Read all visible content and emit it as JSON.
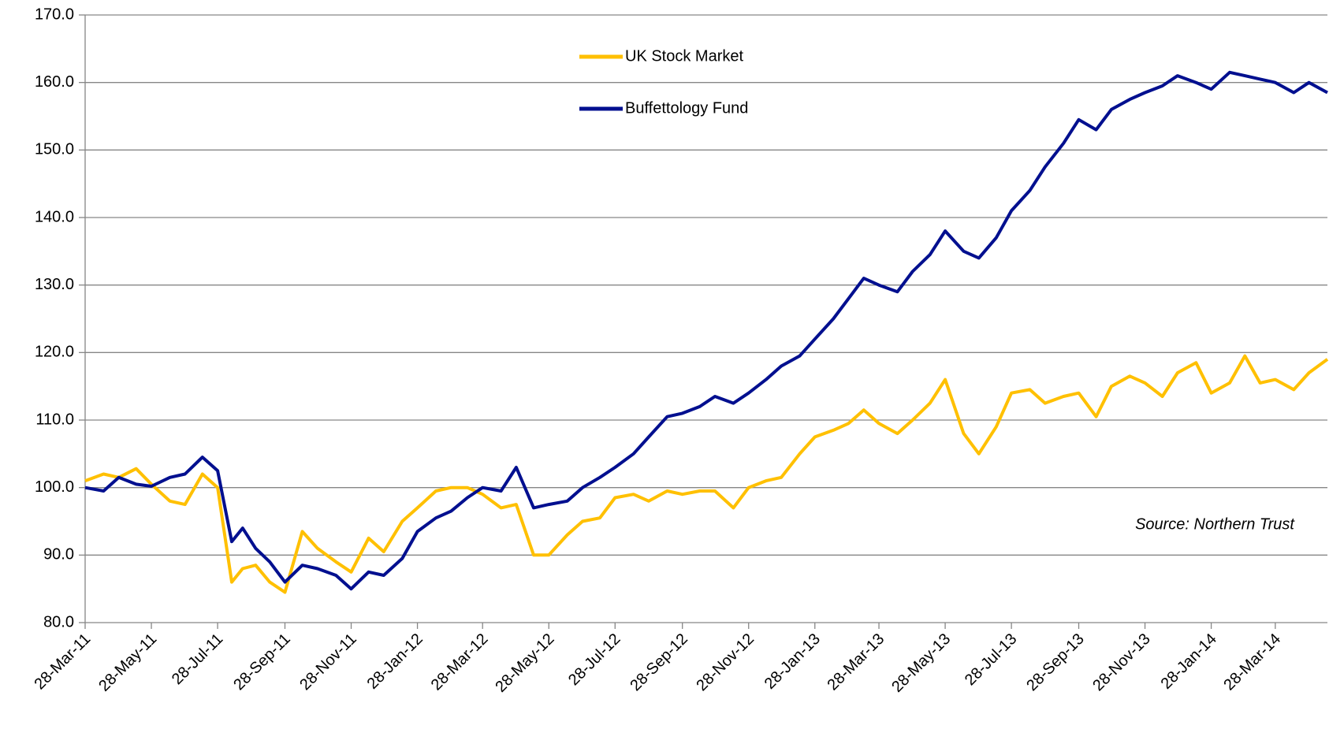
{
  "chart_data": {
    "type": "line",
    "x": [
      "2011-03-28",
      "2011-04-14",
      "2011-04-28",
      "2011-05-14",
      "2011-05-28",
      "2011-06-14",
      "2011-06-28",
      "2011-07-14",
      "2011-07-28",
      "2011-08-10",
      "2011-08-20",
      "2011-09-01",
      "2011-09-14",
      "2011-09-28",
      "2011-10-14",
      "2011-10-28",
      "2011-11-14",
      "2011-11-28",
      "2011-12-14",
      "2011-12-28",
      "2012-01-14",
      "2012-01-28",
      "2012-02-14",
      "2012-02-28",
      "2012-03-14",
      "2012-03-28",
      "2012-04-14",
      "2012-04-28",
      "2012-05-14",
      "2012-05-28",
      "2012-06-14",
      "2012-06-28",
      "2012-07-14",
      "2012-07-28",
      "2012-08-14",
      "2012-08-28",
      "2012-09-14",
      "2012-09-28",
      "2012-10-14",
      "2012-10-28",
      "2012-11-14",
      "2012-11-28",
      "2012-12-14",
      "2012-12-28",
      "2013-01-14",
      "2013-01-28",
      "2013-02-14",
      "2013-02-28",
      "2013-03-14",
      "2013-03-28",
      "2013-04-14",
      "2013-04-28",
      "2013-05-14",
      "2013-05-28",
      "2013-06-14",
      "2013-06-28",
      "2013-07-14",
      "2013-07-28",
      "2013-08-14",
      "2013-08-28",
      "2013-09-14",
      "2013-09-28",
      "2013-10-14",
      "2013-10-28",
      "2013-11-14",
      "2013-11-28",
      "2013-12-14",
      "2013-12-28",
      "2014-01-14",
      "2014-01-28",
      "2014-02-14",
      "2014-02-28",
      "2014-03-14",
      "2014-03-28",
      "2014-04-14",
      "2014-04-28",
      "2014-05-15"
    ],
    "series": [
      {
        "name": "UK Stock Market",
        "color": "#ffc000",
        "values": [
          101,
          102,
          101.5,
          102.8,
          100.5,
          98,
          97.5,
          102,
          100,
          86,
          88,
          88.5,
          86,
          84.5,
          93.5,
          91,
          89,
          87.5,
          92.5,
          90.5,
          95,
          97,
          99.5,
          100,
          100,
          99,
          97,
          97.5,
          90,
          90,
          93,
          95,
          95.5,
          98.5,
          99,
          98,
          99.5,
          99,
          99.5,
          99.5,
          97,
          100,
          101,
          101.5,
          105,
          107.5,
          108.5,
          109.5,
          111.5,
          109.5,
          108,
          110,
          112.5,
          116,
          108,
          105,
          109,
          114,
          114.5,
          112.5,
          113.5,
          114,
          110.5,
          115,
          116.5,
          115.5,
          113.5,
          117,
          118.5,
          114,
          115.5,
          119.5,
          115.5,
          116,
          114.5,
          117,
          119
        ]
      },
      {
        "name": "Buffettology Fund",
        "color": "#000f8f",
        "values": [
          100,
          99.5,
          101.5,
          100.5,
          100.2,
          101.5,
          102,
          104.5,
          102.5,
          92,
          94,
          91,
          89,
          86,
          88.5,
          88,
          87,
          85,
          87.5,
          87,
          89.5,
          93.5,
          95.5,
          96.5,
          98.5,
          100,
          99.5,
          103,
          97,
          97.5,
          98,
          100,
          101.5,
          103,
          105,
          107.5,
          110.5,
          111,
          112,
          113.5,
          112.5,
          114,
          116,
          118,
          119.5,
          122,
          125,
          128,
          131,
          130,
          129,
          132,
          134.5,
          138,
          135,
          134,
          137,
          141,
          144,
          147.5,
          151,
          154.5,
          153,
          156,
          157.5,
          158.5,
          159.5,
          161,
          160,
          159,
          161.5,
          161,
          160.5,
          160,
          158.5,
          160,
          158.5
        ]
      }
    ],
    "xlim": [
      "2011-03-28",
      "2014-05-15"
    ],
    "xticks": [
      {
        "value": "2011-03-28",
        "label": "28-Mar-11"
      },
      {
        "value": "2011-05-28",
        "label": "28-May-11"
      },
      {
        "value": "2011-07-28",
        "label": "28-Jul-11"
      },
      {
        "value": "2011-09-28",
        "label": "28-Sep-11"
      },
      {
        "value": "2011-11-28",
        "label": "28-Nov-11"
      },
      {
        "value": "2012-01-28",
        "label": "28-Jan-12"
      },
      {
        "value": "2012-03-28",
        "label": "28-Mar-12"
      },
      {
        "value": "2012-05-28",
        "label": "28-May-12"
      },
      {
        "value": "2012-07-28",
        "label": "28-Jul-12"
      },
      {
        "value": "2012-09-28",
        "label": "28-Sep-12"
      },
      {
        "value": "2012-11-28",
        "label": "28-Nov-12"
      },
      {
        "value": "2013-01-28",
        "label": "28-Jan-13"
      },
      {
        "value": "2013-03-28",
        "label": "28-Mar-13"
      },
      {
        "value": "2013-05-28",
        "label": "28-May-13"
      },
      {
        "value": "2013-07-28",
        "label": "28-Jul-13"
      },
      {
        "value": "2013-09-28",
        "label": "28-Sep-13"
      },
      {
        "value": "2013-11-28",
        "label": "28-Nov-13"
      },
      {
        "value": "2014-01-28",
        "label": "28-Jan-14"
      },
      {
        "value": "2014-03-28",
        "label": "28-Mar-14"
      }
    ],
    "ylim": [
      80,
      170
    ],
    "yticks": [
      {
        "value": 80,
        "label": "80.0"
      },
      {
        "value": 90,
        "label": "90.0"
      },
      {
        "value": 100,
        "label": "100.0"
      },
      {
        "value": 110,
        "label": "110.0"
      },
      {
        "value": 120,
        "label": "120.0"
      },
      {
        "value": 130,
        "label": "130.0"
      },
      {
        "value": 140,
        "label": "140.0"
      },
      {
        "value": 150,
        "label": "150.0"
      },
      {
        "value": 160,
        "label": "160.0"
      },
      {
        "value": 170,
        "label": "170.0"
      }
    ],
    "grid": true,
    "annotation": "Source: Northern Trust"
  }
}
